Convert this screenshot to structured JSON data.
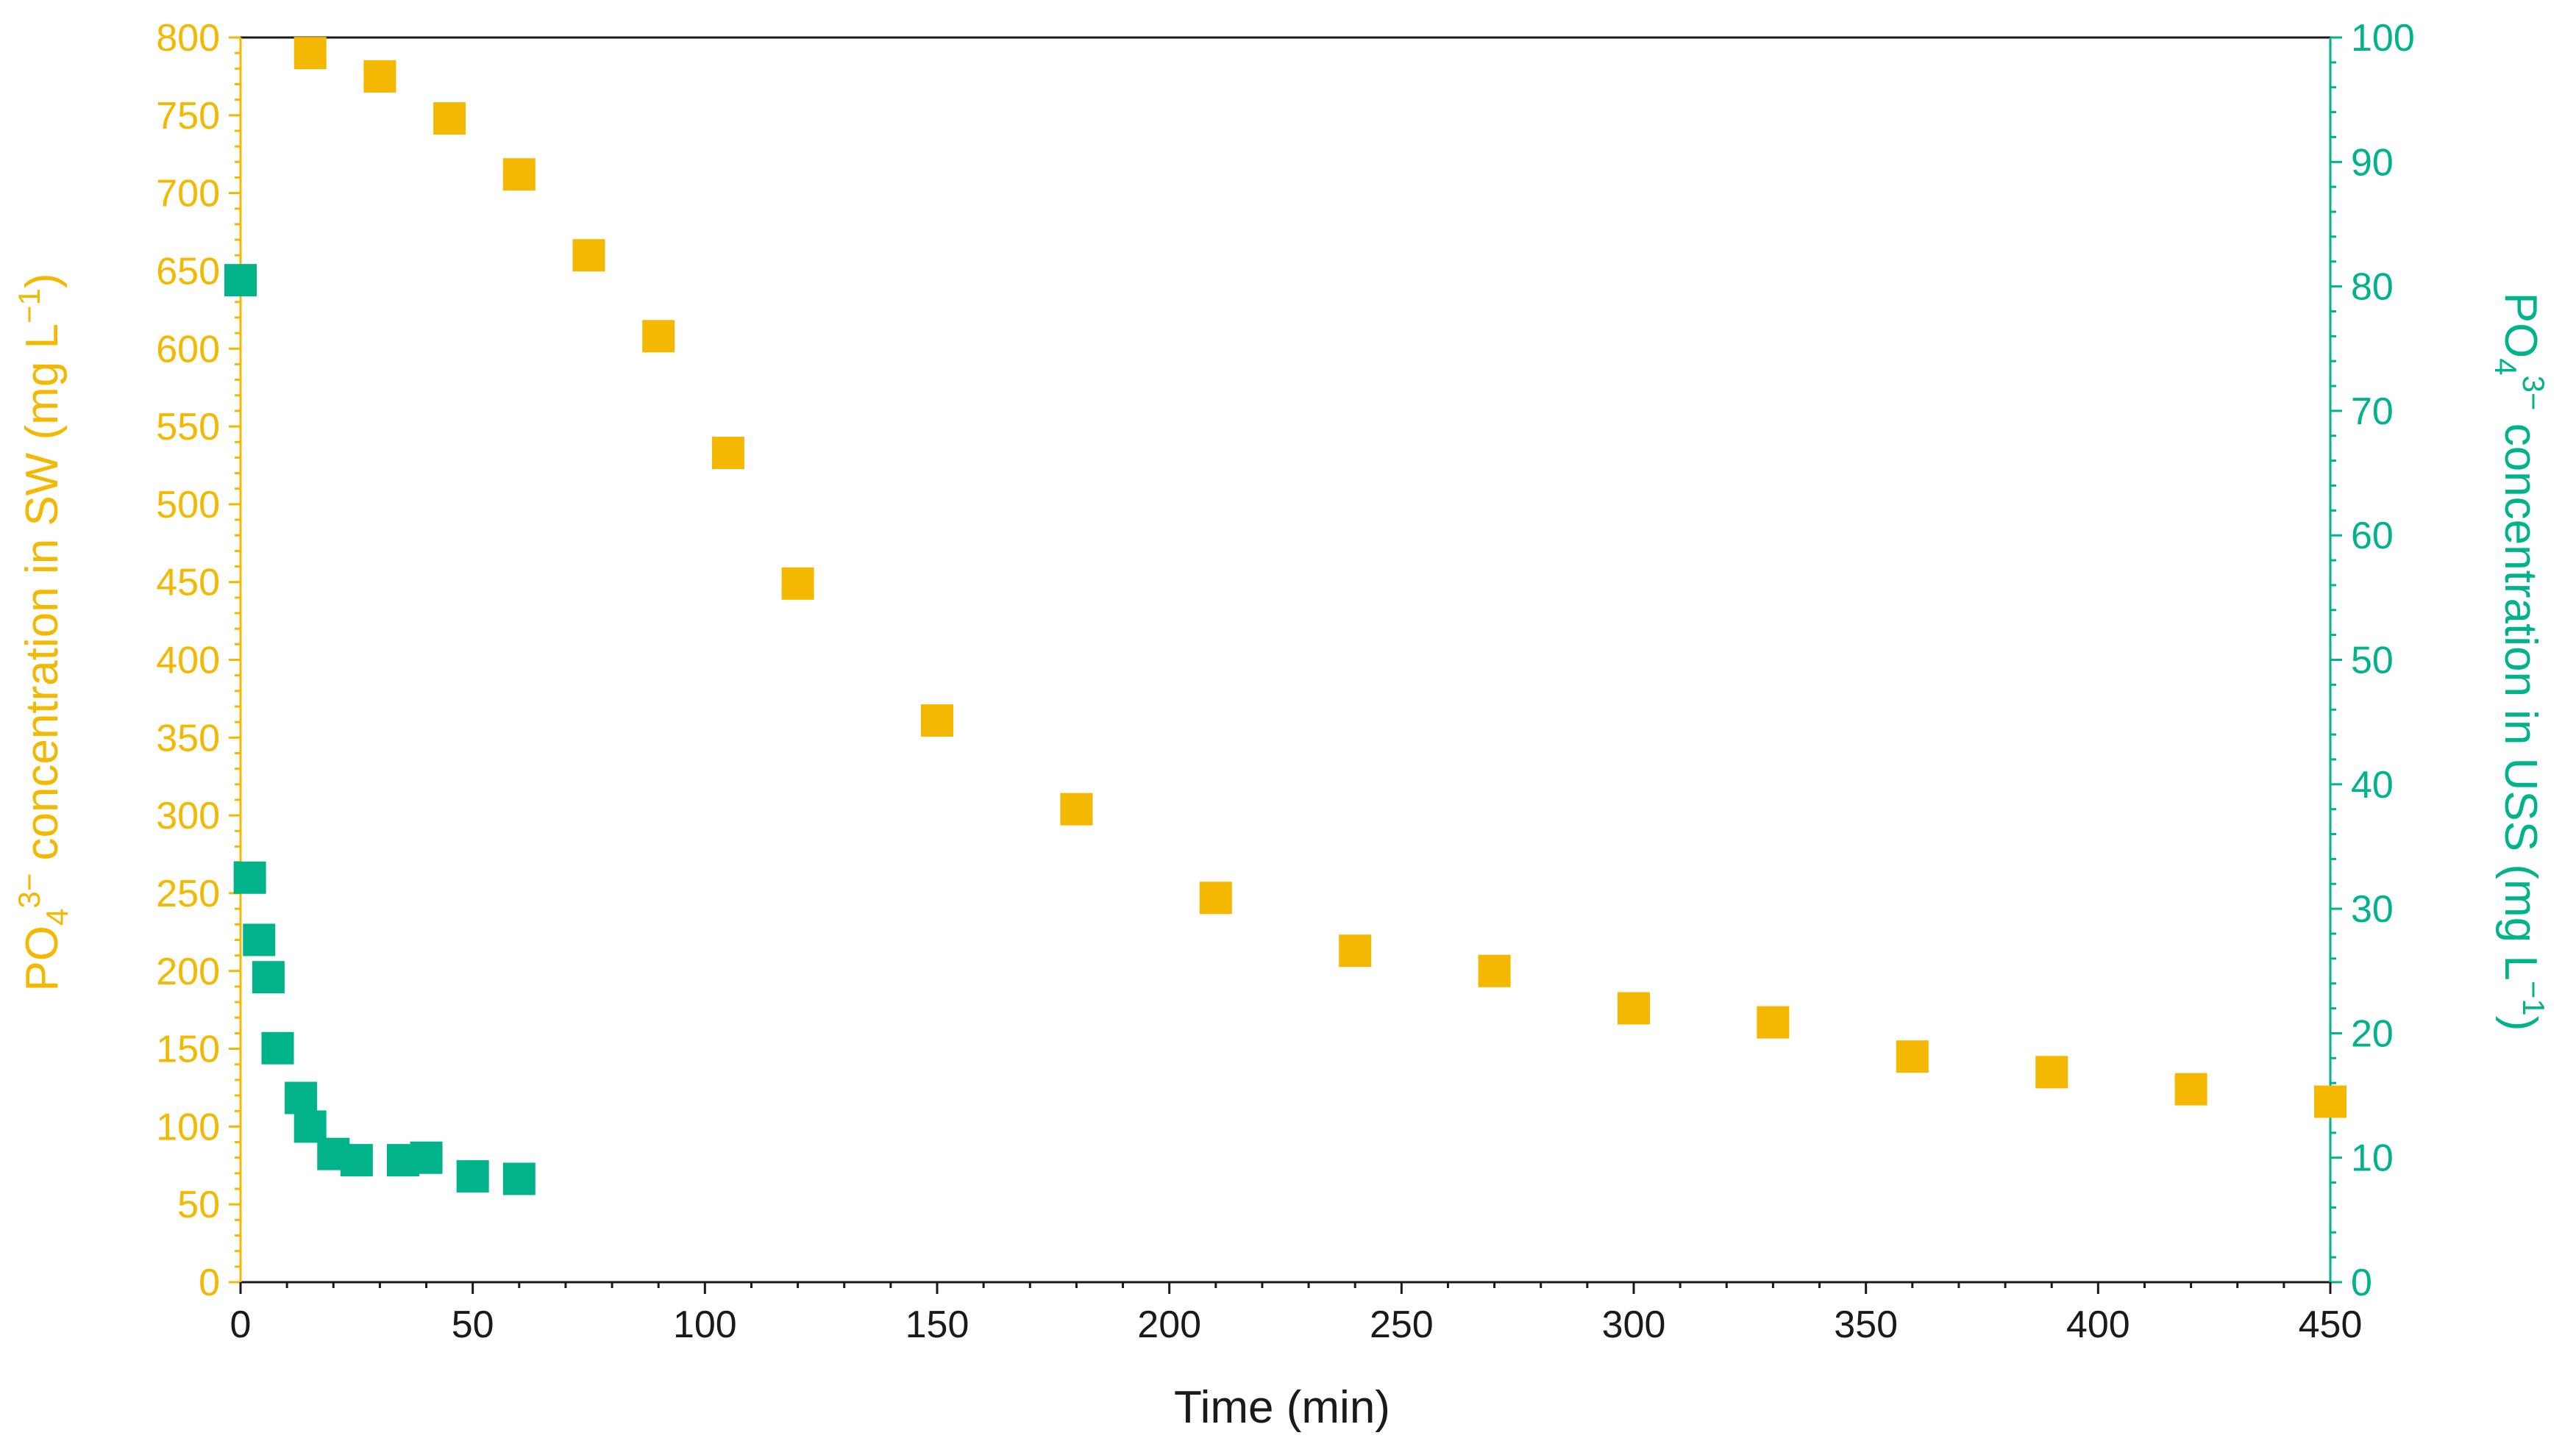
{
  "colors": {
    "sw": "#F5B800",
    "uss": "#00B38A",
    "axis": "#1a1a1a"
  },
  "labels": {
    "xlabel": "Time (min)",
    "ylabel_left": {
      "pre": "PO",
      "sub": "4",
      "sup": "3−",
      "post": " concentration in SW (mg L",
      "sup2": "−1",
      "close": ")"
    },
    "ylabel_right": {
      "pre": "PO",
      "sub": "4",
      "sup": "3−",
      "post": " concentration in USS (mg L",
      "sup2": "−1",
      "close": ")"
    }
  },
  "chart_data": {
    "type": "scatter",
    "xlabel": "Time (min)",
    "ylabel": "PO4 3− concentration in SW (mg L−1)",
    "y2label": "PO4 3− concentration in USS (mg L−1)",
    "xlim": [
      0,
      450
    ],
    "ylim": [
      0,
      800
    ],
    "y2lim": [
      0,
      100
    ],
    "xticks": [
      0,
      50,
      100,
      150,
      200,
      250,
      300,
      350,
      400,
      450
    ],
    "yticks": [
      0,
      50,
      100,
      150,
      200,
      250,
      300,
      350,
      400,
      450,
      500,
      550,
      600,
      650,
      700,
      750,
      800
    ],
    "y2ticks": [
      0,
      10,
      20,
      30,
      40,
      50,
      60,
      70,
      80,
      90,
      100
    ],
    "grid": false,
    "series": [
      {
        "axis": "left",
        "color": "#F5B800",
        "marker": "square",
        "x": [
          15,
          30,
          45,
          60,
          75,
          90,
          105,
          120,
          150,
          180,
          210,
          240,
          270,
          300,
          330,
          360,
          390,
          420,
          450
        ],
        "y": [
          790,
          775,
          748,
          712,
          660,
          608,
          533,
          449,
          361,
          304,
          247,
          213,
          200,
          176,
          167,
          145,
          135,
          124,
          116
        ]
      },
      {
        "axis": "right",
        "color": "#00B38A",
        "marker": "square",
        "x": [
          0,
          2,
          4,
          6,
          8,
          13,
          15,
          20,
          25,
          35,
          40,
          50,
          60
        ],
        "y": [
          80.5,
          32.5,
          27.5,
          24.5,
          18.8,
          14.8,
          12.5,
          10.3,
          9.8,
          9.8,
          10.0,
          8.5,
          8.3
        ]
      }
    ]
  }
}
